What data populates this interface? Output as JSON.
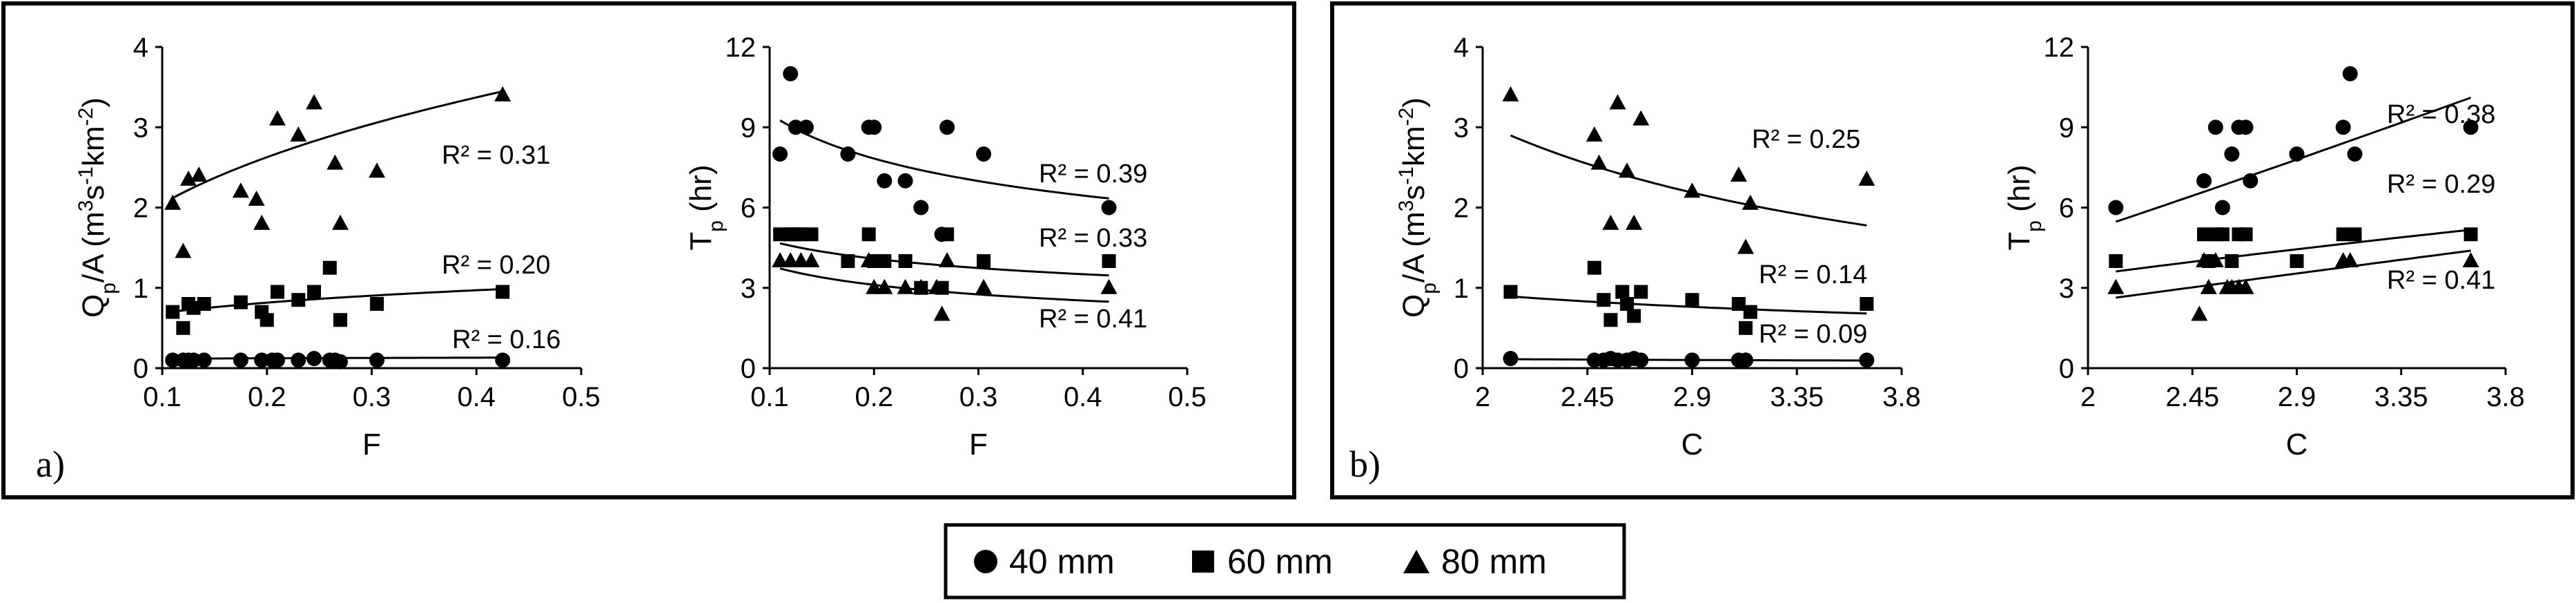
{
  "legend": {
    "entries": [
      {
        "marker": "circle",
        "label": "40 mm"
      },
      {
        "marker": "square",
        "label": "60 mm"
      },
      {
        "marker": "triangle",
        "label": "80 mm"
      }
    ]
  },
  "panels": [
    {
      "label": "a)"
    },
    {
      "label": "b)"
    }
  ],
  "chart_data": [
    {
      "type": "scatter",
      "panel": "a)",
      "xlabel": "F",
      "ylabel": "Qp/A (m3s-1km-2)",
      "xlim": [
        0.1,
        0.5
      ],
      "ylim": [
        0,
        4
      ],
      "xticks": [
        "0.1",
        "0.2",
        "0.3",
        "0.4",
        "0.5"
      ],
      "yticks": [
        "0",
        "1",
        "2",
        "3",
        "4"
      ],
      "series": [
        {
          "name": "40 mm",
          "marker": "circle",
          "x": [
            0.11,
            0.12,
            0.125,
            0.13,
            0.14,
            0.175,
            0.195,
            0.205,
            0.21,
            0.23,
            0.245,
            0.26,
            0.265,
            0.27,
            0.305,
            0.425
          ],
          "y": [
            0.1,
            0.1,
            0.1,
            0.1,
            0.1,
            0.1,
            0.1,
            0.1,
            0.1,
            0.1,
            0.12,
            0.1,
            0.1,
            0.08,
            0.1,
            0.1
          ],
          "fit": {
            "form": "power",
            "a": 0.14,
            "b": 0.08
          },
          "r2": "R² = 0.16"
        },
        {
          "name": "60 mm",
          "marker": "square",
          "x": [
            0.11,
            0.12,
            0.125,
            0.13,
            0.14,
            0.175,
            0.195,
            0.2,
            0.21,
            0.23,
            0.245,
            0.26,
            0.27,
            0.305,
            0.425
          ],
          "y": [
            0.7,
            0.5,
            0.8,
            0.75,
            0.8,
            0.82,
            0.7,
            0.6,
            0.95,
            0.85,
            0.95,
            1.25,
            0.6,
            0.8,
            0.95
          ],
          "fit": {
            "form": "power",
            "a": 1.22,
            "b": 0.25
          },
          "r2": "R² = 0.20"
        },
        {
          "name": "80 mm",
          "marker": "triangle",
          "x": [
            0.11,
            0.12,
            0.125,
            0.135,
            0.175,
            0.19,
            0.195,
            0.21,
            0.23,
            0.245,
            0.265,
            0.27,
            0.305,
            0.425
          ],
          "y": [
            2.05,
            1.45,
            2.35,
            2.4,
            2.2,
            2.1,
            1.8,
            3.1,
            2.9,
            3.3,
            2.55,
            1.8,
            2.45,
            3.4
          ],
          "fit": {
            "form": "power",
            "a": 4.69,
            "b": 0.36
          },
          "r2": "R² = 0.31"
        }
      ]
    },
    {
      "type": "scatter",
      "panel": "a)",
      "xlabel": "F",
      "ylabel": "Tp (hr)",
      "xlim": [
        0.1,
        0.5
      ],
      "ylim": [
        0,
        12
      ],
      "xticks": [
        "0.1",
        "0.2",
        "0.3",
        "0.4",
        "0.5"
      ],
      "yticks": [
        "0",
        "3",
        "6",
        "9",
        "12"
      ],
      "series": [
        {
          "name": "40 mm",
          "marker": "circle",
          "x": [
            0.11,
            0.12,
            0.125,
            0.135,
            0.175,
            0.195,
            0.2,
            0.21,
            0.23,
            0.245,
            0.265,
            0.27,
            0.305,
            0.425
          ],
          "y": [
            8,
            11,
            9,
            9,
            8,
            9,
            9,
            7,
            7,
            6,
            5,
            9,
            8,
            6
          ],
          "fit": {
            "form": "power",
            "a": 4.99,
            "b": -0.28
          },
          "r2": "R² = 0.39"
        },
        {
          "name": "60 mm",
          "marker": "square",
          "x": [
            0.11,
            0.12,
            0.125,
            0.13,
            0.14,
            0.175,
            0.195,
            0.2,
            0.21,
            0.23,
            0.245,
            0.265,
            0.27,
            0.305,
            0.425
          ],
          "y": [
            5,
            5,
            5,
            5,
            5,
            4,
            5,
            4,
            4,
            4,
            3,
            3,
            5,
            4,
            4
          ],
          "fit": {
            "form": "power",
            "a": 2.87,
            "b": -0.22
          },
          "r2": "R² = 0.33"
        },
        {
          "name": "80 mm",
          "marker": "triangle",
          "x": [
            0.11,
            0.12,
            0.13,
            0.14,
            0.195,
            0.2,
            0.21,
            0.23,
            0.245,
            0.26,
            0.265,
            0.27,
            0.305,
            0.425
          ],
          "y": [
            4,
            4,
            4,
            4,
            4,
            3,
            3,
            3,
            3,
            3,
            2,
            4,
            3,
            3
          ],
          "fit": {
            "form": "power",
            "a": 1.92,
            "b": -0.3
          },
          "r2": "R² = 0.41"
        }
      ]
    },
    {
      "type": "scatter",
      "panel": "b)",
      "xlabel": "C",
      "ylabel": "Qp/A (m3s-1km-2)",
      "xlim": [
        2,
        3.8
      ],
      "ylim": [
        0,
        4
      ],
      "xticks": [
        "2",
        "2.45",
        "2.9",
        "3.35",
        "3.8"
      ],
      "yticks": [
        "0",
        "1",
        "2",
        "3",
        "4"
      ],
      "series": [
        {
          "name": "40 mm",
          "marker": "circle",
          "x": [
            2.12,
            2.48,
            2.52,
            2.55,
            2.58,
            2.62,
            2.65,
            2.68,
            2.9,
            3.1,
            3.13,
            3.65
          ],
          "y": [
            0.12,
            0.1,
            0.1,
            0.12,
            0.1,
            0.1,
            0.12,
            0.1,
            0.1,
            0.1,
            0.1,
            0.1
          ],
          "fit": {
            "form": "power",
            "a": 0.14,
            "b": -0.3
          },
          "r2": "R² = 0.09"
        },
        {
          "name": "60 mm",
          "marker": "square",
          "x": [
            2.12,
            2.48,
            2.52,
            2.55,
            2.6,
            2.62,
            2.65,
            2.68,
            2.9,
            3.1,
            3.13,
            3.15,
            3.65
          ],
          "y": [
            0.95,
            1.25,
            0.85,
            0.6,
            0.95,
            0.8,
            0.65,
            0.95,
            0.85,
            0.8,
            0.5,
            0.7,
            0.8
          ],
          "fit": {
            "form": "power",
            "a": 1.3,
            "b": -0.5
          },
          "r2": "R² = 0.14"
        },
        {
          "name": "80 mm",
          "marker": "triangle",
          "x": [
            2.12,
            2.48,
            2.5,
            2.55,
            2.58,
            2.62,
            2.65,
            2.68,
            2.9,
            3.1,
            3.13,
            3.15,
            3.65
          ],
          "y": [
            3.4,
            2.9,
            2.55,
            1.8,
            3.3,
            2.45,
            1.8,
            3.1,
            2.2,
            2.4,
            1.5,
            2.05,
            2.35
          ],
          "fit": {
            "form": "power",
            "a": 5.7,
            "b": -0.9
          },
          "r2": "R² = 0.25"
        }
      ]
    },
    {
      "type": "scatter",
      "panel": "b)",
      "xlabel": "C",
      "ylabel": "Tp (hr)",
      "xlim": [
        2,
        3.8
      ],
      "ylim": [
        0,
        12
      ],
      "xticks": [
        "2",
        "2.45",
        "2.9",
        "3.35",
        "3.8"
      ],
      "yticks": [
        "0",
        "3",
        "6",
        "9",
        "12"
      ],
      "series": [
        {
          "name": "40 mm",
          "marker": "circle",
          "x": [
            2.12,
            2.5,
            2.55,
            2.58,
            2.62,
            2.65,
            2.68,
            2.7,
            2.9,
            3.1,
            3.13,
            3.15,
            3.65
          ],
          "y": [
            6,
            7,
            9,
            6,
            8,
            9,
            9,
            7,
            8,
            9,
            11,
            8,
            9
          ],
          "fit": {
            "form": "power",
            "a": 2.34,
            "b": 1.13
          },
          "r2": "R² = 0.38"
        },
        {
          "name": "60 mm",
          "marker": "square",
          "x": [
            2.12,
            2.5,
            2.52,
            2.55,
            2.58,
            2.62,
            2.65,
            2.68,
            2.9,
            3.1,
            3.15,
            3.65
          ],
          "y": [
            4,
            5,
            4,
            5,
            5,
            4,
            5,
            5,
            4,
            5,
            5,
            5
          ],
          "fit": {
            "form": "power",
            "a": 2.2,
            "b": 0.66
          },
          "r2": "R² = 0.29"
        },
        {
          "name": "80 mm",
          "marker": "triangle",
          "x": [
            2.12,
            2.48,
            2.5,
            2.52,
            2.55,
            2.6,
            2.62,
            2.65,
            2.68,
            3.1,
            3.13,
            3.65
          ],
          "y": [
            3,
            2,
            4,
            3,
            4,
            3,
            3,
            3,
            3,
            4,
            4,
            4
          ],
          "fit": {
            "form": "power",
            "a": 1.3,
            "b": 0.94
          },
          "r2": "R² = 0.41"
        }
      ]
    }
  ]
}
